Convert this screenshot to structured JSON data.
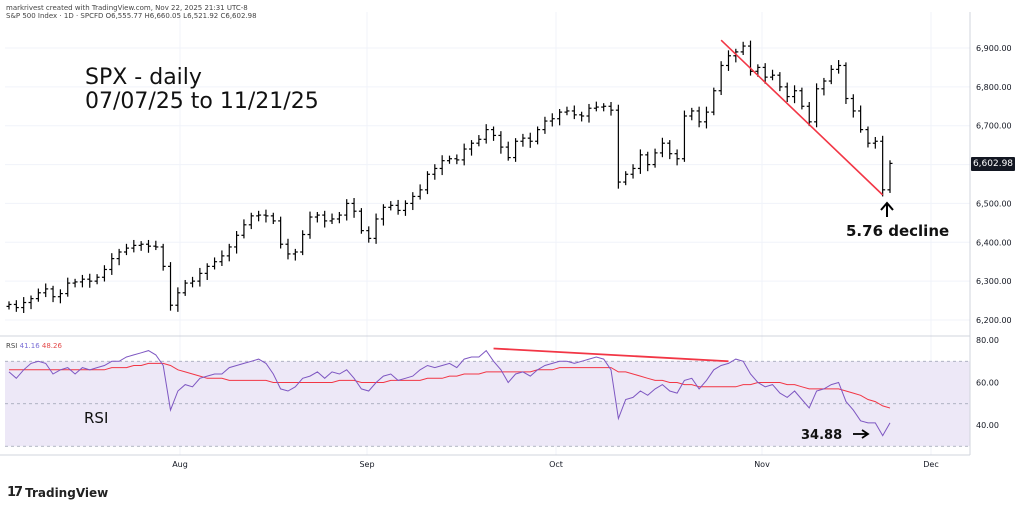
{
  "header": {
    "text": "markrivest created with TradingView.com, Nov 22, 2025 21:31 UTC-8",
    "symbol": "S&P 500 Index · 1D · SPCFD",
    "ohlc": "O6,555.77  H6,660.05  L6,521.92  C6,602.98"
  },
  "annotations": {
    "title_line1": "SPX - daily",
    "title_line2": "07/07/25 to 11/21/25",
    "decline": "5.76 decline",
    "rsi_label": "RSI",
    "rsi_value": "34.88"
  },
  "branding": {
    "logo_text": "TradingView",
    "logo_mark": "17"
  },
  "colors": {
    "bar": "#000000",
    "trendline": "#f23645",
    "rsi_line": "#7e57c2",
    "rsi_ma": "#f23645",
    "rsi_band": "#ede8f7"
  },
  "chart_data": [
    {
      "type": "ohlc",
      "title": "S&P 500 Index daily",
      "last_price_label": "6,602.98",
      "x_ticks": [
        "Aug",
        "Sep",
        "Oct",
        "Nov",
        "Dec"
      ],
      "y_ticks": [
        "6,900.00",
        "6,800.00",
        "6,700.00",
        "6,600.00",
        "6,500.00",
        "6,400.00",
        "6,300.00",
        "6,200.00"
      ],
      "ylim": [
        6160,
        6960
      ],
      "closes": [
        6240,
        6232,
        6245,
        6255,
        6270,
        6280,
        6260,
        6268,
        6295,
        6298,
        6305,
        6300,
        6310,
        6330,
        6358,
        6375,
        6385,
        6392,
        6395,
        6390,
        6388,
        6338,
        6238,
        6270,
        6295,
        6300,
        6320,
        6338,
        6350,
        6365,
        6388,
        6418,
        6445,
        6468,
        6470,
        6468,
        6455,
        6395,
        6370,
        6375,
        6420,
        6465,
        6470,
        6455,
        6460,
        6470,
        6500,
        6480,
        6430,
        6410,
        6460,
        6490,
        6495,
        6482,
        6500,
        6518,
        6535,
        6575,
        6590,
        6610,
        6615,
        6612,
        6640,
        6655,
        6665,
        6690,
        6675,
        6645,
        6618,
        6660,
        6668,
        6660,
        6690,
        6712,
        6718,
        6735,
        6738,
        6728,
        6725,
        6745,
        6748,
        6750,
        6740,
        6555,
        6575,
        6590,
        6625,
        6600,
        6630,
        6655,
        6628,
        6615,
        6725,
        6738,
        6710,
        6735,
        6790,
        6855,
        6880,
        6890,
        6905,
        6840,
        6850,
        6825,
        6830,
        6800,
        6775,
        6790,
        6750,
        6710,
        6795,
        6815,
        6845,
        6855,
        6770,
        6738,
        6690,
        6655,
        6660,
        6535,
        6603
      ],
      "events": [
        {
          "date": "07/07/25",
          "value": 6240
        },
        {
          "date": "10/28/25",
          "value": 6920
        },
        {
          "date": "11/20/25",
          "value": 6522
        }
      ]
    },
    {
      "type": "line",
      "title": "RSI",
      "series": [
        {
          "name": "RSI 14",
          "last": "41.16"
        },
        {
          "name": "MA",
          "last": "48.26"
        }
      ],
      "y_ticks": [
        "80.00",
        "60.00",
        "40.00"
      ],
      "ylim": [
        27,
        82
      ],
      "overbought": 70,
      "oversold": 30,
      "divergence": {
        "from": 76,
        "to": 70
      },
      "rsi_values": [
        65,
        62,
        66,
        69,
        70,
        69,
        64,
        66,
        67,
        64,
        67,
        66,
        67,
        68,
        70,
        70,
        72,
        73,
        74,
        75,
        73,
        68,
        47,
        56,
        59,
        58,
        62,
        63,
        64,
        64,
        67,
        68,
        69,
        70,
        71,
        69,
        64,
        57,
        56,
        58,
        62,
        63,
        65,
        62,
        65,
        64,
        66,
        62,
        57,
        56,
        60,
        63,
        64,
        61,
        62,
        63,
        66,
        68,
        67,
        68,
        69,
        67,
        71,
        72,
        72,
        75,
        70,
        66,
        60,
        64,
        65,
        63,
        66,
        68,
        69,
        70,
        70,
        69,
        70,
        71,
        72,
        71,
        66,
        43,
        52,
        53,
        56,
        54,
        57,
        59,
        56,
        55,
        61,
        62,
        57,
        61,
        66,
        68,
        69,
        71,
        70,
        64,
        60,
        58,
        59,
        55,
        53,
        56,
        52,
        48,
        56,
        57,
        59,
        60,
        51,
        47,
        42,
        41,
        41,
        35,
        41
      ],
      "ma_values": [
        66,
        66,
        66,
        66,
        66,
        66,
        66,
        66,
        66,
        66,
        66,
        66,
        66,
        66,
        67,
        67,
        67,
        68,
        68,
        69,
        69,
        69,
        68,
        66,
        65,
        64,
        63,
        62,
        62,
        62,
        61,
        61,
        61,
        61,
        61,
        61,
        60,
        60,
        60,
        60,
        60,
        60,
        60,
        60,
        60,
        61,
        61,
        61,
        60,
        60,
        60,
        60,
        61,
        61,
        61,
        61,
        61,
        62,
        62,
        62,
        63,
        63,
        64,
        64,
        64,
        65,
        65,
        65,
        65,
        65,
        65,
        65,
        66,
        66,
        66,
        67,
        67,
        67,
        67,
        67,
        67,
        67,
        67,
        65,
        65,
        64,
        63,
        62,
        61,
        61,
        60,
        60,
        59,
        59,
        58,
        58,
        58,
        58,
        58,
        58,
        59,
        59,
        60,
        60,
        60,
        60,
        59,
        59,
        58,
        57,
        57,
        57,
        57,
        57,
        56,
        55,
        54,
        52,
        51,
        49,
        48
      ]
    }
  ]
}
